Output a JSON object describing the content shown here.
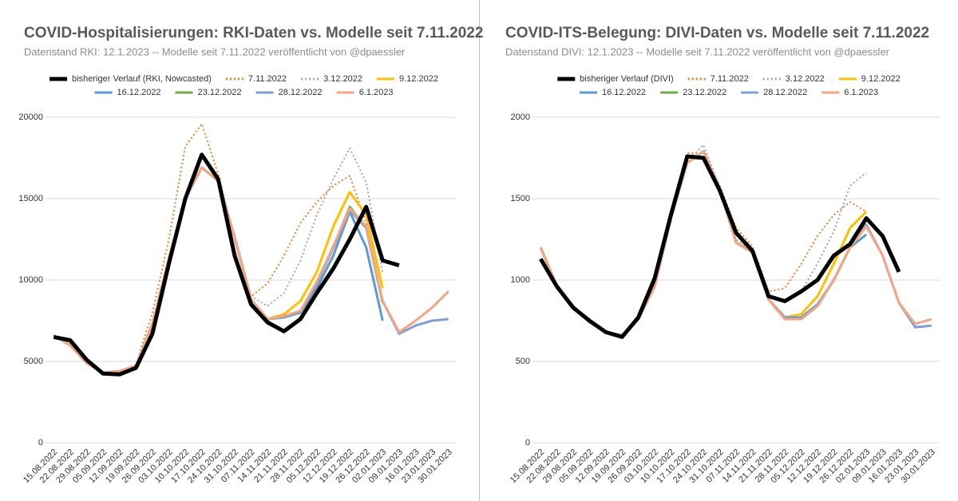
{
  "chart_data": [
    {
      "type": "line",
      "title": "COVID-Hospitalisierungen: RKI-Daten vs. Modelle seit 7.11.2022",
      "subtitle": "Datenstand RKI: 12.1.2023 -- Modelle seit 7.11.2022 veröffentlicht von @dpaessler",
      "categories": [
        "15.08.2022",
        "22.08.2022",
        "29.08.2022",
        "05.09.2022",
        "12.09.2022",
        "19.09.2022",
        "26.09.2022",
        "03.10.2022",
        "10.10.2022",
        "17.10.2022",
        "24.10.2022",
        "31.10.2022",
        "07.11.2022",
        "14.11.2022",
        "21.11.2022",
        "28.11.2022",
        "05.12.2022",
        "12.12.2022",
        "19.12.2022",
        "26.12.2022",
        "02.01.2023",
        "09.01.2023",
        "16.01.2023",
        "23.01.2023",
        "30.01.2023"
      ],
      "ylim": [
        0,
        20000
      ],
      "yticks": [
        0,
        5000,
        10000,
        15000,
        20000
      ],
      "grid": true,
      "series": [
        {
          "name": "bisheriger Verlauf (RKI, Nowcasted)",
          "color": "#000000",
          "style": "solid",
          "values": [
            6500,
            6300,
            5100,
            4250,
            4200,
            4600,
            6700,
            11000,
            15000,
            17700,
            16200,
            11500,
            8500,
            7400,
            6850,
            7600,
            9200,
            10700,
            12500,
            14500,
            11200,
            10900,
            null,
            null,
            null
          ]
        },
        {
          "name": "7.11.2022",
          "color": "#ed7d31",
          "style": "dotted",
          "values": [
            6600,
            6200,
            5000,
            4300,
            4400,
            4800,
            8000,
            12500,
            18200,
            19600,
            16500,
            12500,
            9000,
            9800,
            11500,
            13500,
            14800,
            15800,
            16400,
            13500,
            9500,
            null,
            null,
            null,
            null
          ]
        },
        {
          "name": "3.12.2022",
          "color": "#a5a5a5",
          "style": "dotted",
          "values": [
            6600,
            6000,
            4900,
            4300,
            4400,
            4700,
            7400,
            11400,
            15100,
            16900,
            16100,
            12800,
            9000,
            8400,
            9200,
            11200,
            14000,
            16200,
            18100,
            16000,
            10500,
            null,
            null,
            null,
            null
          ]
        },
        {
          "name": "9.12.2022",
          "color": "#ffc000",
          "style": "solid",
          "values": [
            6600,
            6000,
            4900,
            4300,
            4400,
            4700,
            7300,
            11300,
            15000,
            16900,
            16100,
            12600,
            8800,
            7600,
            7900,
            8700,
            10500,
            13300,
            15400,
            14000,
            9500,
            null,
            null,
            null,
            null
          ]
        },
        {
          "name": "16.12.2022",
          "color": "#5b9bd5",
          "style": "solid",
          "values": [
            6600,
            6000,
            4900,
            4300,
            4400,
            4700,
            7300,
            11300,
            15000,
            16900,
            16100,
            12600,
            8800,
            7600,
            7700,
            8000,
            9500,
            11500,
            14200,
            12000,
            7500,
            null,
            null,
            null,
            null
          ]
        },
        {
          "name": "23.12.2022",
          "color": "#70ad47",
          "style": "solid",
          "values": [
            6600,
            6000,
            4900,
            4300,
            4400,
            4700,
            7300,
            11300,
            15000,
            16900,
            16100,
            12600,
            8800,
            7600,
            7700,
            8100,
            9800,
            12000,
            14500,
            13200,
            8600,
            null,
            null,
            null,
            null
          ]
        },
        {
          "name": "28.12.2022",
          "color": "#7f9fd4",
          "style": "solid",
          "values": [
            6600,
            6000,
            4900,
            4300,
            4400,
            4700,
            7300,
            11300,
            15000,
            16900,
            16100,
            12600,
            8800,
            7600,
            7700,
            8100,
            9800,
            12000,
            14300,
            13200,
            8700,
            6700,
            7200,
            7500,
            7600
          ]
        },
        {
          "name": "6.1.2023",
          "color": "#f4a582",
          "style": "solid",
          "values": [
            6600,
            6000,
            4900,
            4300,
            4400,
            4700,
            7300,
            11300,
            15000,
            16900,
            16100,
            12600,
            8800,
            7600,
            7800,
            8100,
            9900,
            12100,
            14400,
            13300,
            8700,
            6800,
            7500,
            8300,
            9300
          ]
        }
      ]
    },
    {
      "type": "line",
      "title": "COVID-ITS-Belegung: DIVI-Daten vs. Modelle seit 7.11.2022",
      "subtitle": "Datenstand DIVI: 12.1.2023 -- Modelle seit 7.11.2022 veröffentlicht von @dpaessler",
      "categories": [
        "15.08.2022",
        "22.08.2022",
        "29.08.2022",
        "05.09.2022",
        "12.09.2022",
        "19.09.2022",
        "26.09.2022",
        "03.10.2022",
        "10.10.2022",
        "17.10.2022",
        "24.10.2022",
        "31.10.2022",
        "07.11.2022",
        "14.11.2022",
        "21.11.2022",
        "28.11.2022",
        "05.12.2022",
        "12.12.2022",
        "19.12.2022",
        "26.12.2022",
        "02.01.2023",
        "09.01.2023",
        "16.01.2023",
        "23.01.2023",
        "30.01.2023"
      ],
      "ylim": [
        0,
        2000
      ],
      "yticks": [
        0,
        500,
        1000,
        1500,
        2000
      ],
      "grid": true,
      "series": [
        {
          "name": "bisheriger Verlauf (DIVI)",
          "color": "#000000",
          "style": "solid",
          "values": [
            1130,
            960,
            830,
            750,
            680,
            650,
            770,
            1010,
            1400,
            1760,
            1750,
            1550,
            1290,
            1180,
            900,
            870,
            930,
            1000,
            1150,
            1220,
            1380,
            1270,
            1050,
            null,
            null
          ]
        },
        {
          "name": "7.11.2022",
          "color": "#ed7d31",
          "style": "dotted",
          "values": [
            1200,
            970,
            840,
            740,
            680,
            660,
            760,
            980,
            1400,
            1780,
            1780,
            1580,
            1320,
            1210,
            930,
            950,
            1100,
            1270,
            1400,
            1480,
            1420,
            null,
            null,
            null,
            null
          ]
        },
        {
          "name": "3.12.2022",
          "color": "#a5a5a5",
          "style": "dotted",
          "values": [
            1200,
            960,
            840,
            740,
            680,
            660,
            760,
            970,
            1390,
            1730,
            1830,
            1570,
            1250,
            1180,
            900,
            880,
            930,
            1100,
            1300,
            1580,
            1660,
            null,
            null,
            null,
            null
          ]
        },
        {
          "name": "9.12.2022",
          "color": "#ffc000",
          "style": "solid",
          "values": [
            1200,
            960,
            840,
            740,
            680,
            660,
            760,
            960,
            1380,
            1720,
            1790,
            1560,
            1230,
            1180,
            880,
            770,
            790,
            900,
            1100,
            1320,
            1420,
            null,
            null,
            null,
            null
          ]
        },
        {
          "name": "16.12.2022",
          "color": "#5b9bd5",
          "style": "solid",
          "values": [
            1200,
            960,
            840,
            740,
            680,
            660,
            760,
            960,
            1380,
            1720,
            1790,
            1560,
            1230,
            1170,
            880,
            770,
            770,
            850,
            1000,
            1200,
            1280,
            null,
            null,
            null,
            null
          ]
        },
        {
          "name": "23.12.2022",
          "color": "#70ad47",
          "style": "solid",
          "values": [
            1200,
            960,
            840,
            740,
            680,
            660,
            760,
            960,
            1380,
            1720,
            1790,
            1560,
            1230,
            1170,
            880,
            760,
            760,
            840,
            1000,
            1200,
            1340,
            null,
            null,
            null,
            null
          ]
        },
        {
          "name": "28.12.2022",
          "color": "#7f9fd4",
          "style": "solid",
          "values": [
            1200,
            960,
            840,
            740,
            680,
            660,
            760,
            960,
            1380,
            1720,
            1790,
            1560,
            1230,
            1170,
            880,
            760,
            760,
            840,
            1000,
            1200,
            1340,
            1150,
            860,
            710,
            720
          ]
        },
        {
          "name": "6.1.2023",
          "color": "#f4a582",
          "style": "solid",
          "values": [
            1200,
            960,
            840,
            740,
            680,
            660,
            760,
            960,
            1380,
            1720,
            1790,
            1560,
            1230,
            1170,
            880,
            760,
            760,
            840,
            1000,
            1200,
            1330,
            1150,
            860,
            730,
            760
          ]
        }
      ]
    }
  ]
}
